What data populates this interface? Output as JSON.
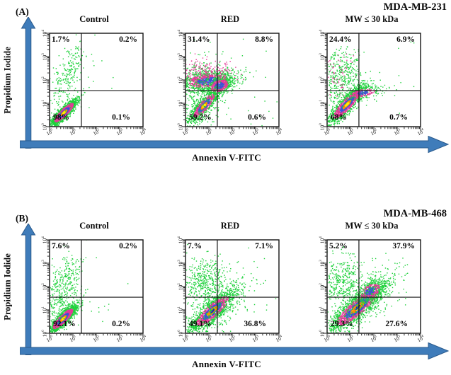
{
  "sections": [
    {
      "label": "(A)",
      "cell_line": "MDA-MB-231",
      "y_axis_label": "Propidium Iodide",
      "x_axis_label": "Annexin V-FITC",
      "panel_indices": [
        0,
        1,
        2
      ]
    },
    {
      "label": "(B)",
      "cell_line": "MDA-MB-468",
      "y_axis_label": "Propidium Iodide",
      "x_axis_label": "Annexin V-FITC",
      "panel_indices": [
        3,
        4,
        5
      ]
    }
  ],
  "axis_ticks": {
    "base": "10",
    "exponents": [
      0,
      1,
      2,
      3,
      4
    ]
  },
  "colors": {
    "arrow_fill": "#3f7cba",
    "arrow_stroke": "#2a5a8c",
    "plot_border": "#141414",
    "text": "#0a0a0a",
    "palette": {
      "green": "#1ed13b",
      "magenta": "#e33b98",
      "blue": "#3d52d6",
      "orange": "#ff9100",
      "yellow": "#fff200",
      "navy": "#1a2bb0"
    },
    "cluster_styles": {
      "core_yellow": [
        [
          1.45,
          "green"
        ],
        [
          0.8,
          "magenta"
        ],
        [
          0.45,
          "blue"
        ],
        [
          0.22,
          "orange"
        ],
        [
          -1,
          "yellow"
        ]
      ],
      "core_orange": [
        [
          1.5,
          "green"
        ],
        [
          0.85,
          "magenta"
        ],
        [
          0.5,
          "blue"
        ],
        [
          0.2,
          "orange"
        ],
        [
          -1,
          "navy"
        ]
      ],
      "band": [
        [
          1.3,
          "green"
        ],
        [
          0.7,
          "magenta"
        ],
        [
          -1,
          "blue"
        ]
      ],
      "green": [
        [
          -1,
          "green"
        ]
      ],
      "magenta": [
        [
          -1,
          "magenta"
        ]
      ]
    }
  },
  "chart_data": [
    {
      "id": "A-control",
      "type": "scatter",
      "subtype": "flow_cytometry_density",
      "cell_line": "MDA-MB-231",
      "condition": "Control",
      "xlabel": "Annexin V-FITC",
      "ylabel": "Propidium Iodide",
      "x_scale": "log10",
      "y_scale": "log10",
      "xlim": [
        1,
        10000
      ],
      "ylim": [
        1,
        10000
      ],
      "quadrant_gate": {
        "x": 23,
        "y": 35
      },
      "quadrant_percentages": {
        "upper_left": "1.7%",
        "upper_right": "0.2%",
        "lower_left": "98%",
        "lower_right": "0.1%"
      },
      "seed": 101,
      "clusters": [
        {
          "cx": 0.62,
          "cy": 0.6,
          "along": 0.38,
          "across": 0.1,
          "angle": 45,
          "n": 1500,
          "style": "core_yellow"
        },
        {
          "cx": 0.75,
          "cy": 2.05,
          "along": 0.85,
          "across": 0.3,
          "angle": 70,
          "n": 240,
          "style": "green"
        },
        {
          "cx": 2.2,
          "cy": 1.6,
          "along": 1.2,
          "across": 1.0,
          "angle": 0,
          "n": 14,
          "style": "green"
        }
      ]
    },
    {
      "id": "A-red",
      "type": "scatter",
      "subtype": "flow_cytometry_density",
      "cell_line": "MDA-MB-231",
      "condition": "RED",
      "xlabel": "Annexin V-FITC",
      "ylabel": "Propidium Iodide",
      "x_scale": "log10",
      "y_scale": "log10",
      "xlim": [
        1,
        10000
      ],
      "ylim": [
        1,
        10000
      ],
      "quadrant_gate": {
        "x": 23,
        "y": 35
      },
      "quadrant_percentages": {
        "upper_left": "31.4%",
        "upper_right": "8.8%",
        "lower_left": "59.2%",
        "lower_right": "0.6%"
      },
      "seed": 102,
      "clusters": [
        {
          "cx": 0.95,
          "cy": 1.95,
          "along": 0.62,
          "across": 0.22,
          "angle": 5,
          "n": 1100,
          "style": "band"
        },
        {
          "cx": 0.8,
          "cy": 2.3,
          "along": 0.7,
          "across": 0.28,
          "angle": 0,
          "n": 240,
          "style": "magenta"
        },
        {
          "cx": 0.8,
          "cy": 0.9,
          "along": 0.45,
          "across": 0.13,
          "angle": 48,
          "n": 900,
          "style": "core_yellow"
        },
        {
          "cx": 1.45,
          "cy": 1.75,
          "along": 0.3,
          "across": 0.18,
          "angle": 20,
          "n": 450,
          "style": "band"
        },
        {
          "cx": 0.55,
          "cy": 1.4,
          "along": 0.8,
          "across": 0.5,
          "angle": 80,
          "n": 380,
          "style": "green"
        },
        {
          "cx": 2.2,
          "cy": 1.5,
          "along": 1.3,
          "across": 1.2,
          "angle": 0,
          "n": 40,
          "style": "green"
        }
      ]
    },
    {
      "id": "A-mw30",
      "type": "scatter",
      "subtype": "flow_cytometry_density",
      "cell_line": "MDA-MB-231",
      "condition": "MW ≤ 30 kDa",
      "xlabel": "Annexin V-FITC",
      "ylabel": "Propidium Iodide",
      "x_scale": "log10",
      "y_scale": "log10",
      "xlim": [
        1,
        10000
      ],
      "ylim": [
        1,
        10000
      ],
      "quadrant_gate": {
        "x": 23,
        "y": 35
      },
      "quadrant_percentages": {
        "upper_left": "24.4%",
        "upper_right": "6.9%",
        "lower_left": "68%",
        "lower_right": "0.7%"
      },
      "seed": 103,
      "clusters": [
        {
          "cx": 0.85,
          "cy": 0.95,
          "along": 0.55,
          "across": 0.14,
          "angle": 47,
          "n": 1300,
          "style": "core_yellow"
        },
        {
          "cx": 1.55,
          "cy": 1.45,
          "along": 0.4,
          "across": 0.12,
          "angle": 10,
          "n": 300,
          "style": "band"
        },
        {
          "cx": 0.6,
          "cy": 2.1,
          "along": 0.6,
          "across": 0.4,
          "angle": 75,
          "n": 400,
          "style": "green"
        },
        {
          "cx": 0.5,
          "cy": 2.2,
          "along": 0.5,
          "across": 0.3,
          "angle": 75,
          "n": 60,
          "style": "magenta"
        },
        {
          "cx": 2.4,
          "cy": 1.9,
          "along": 1.1,
          "across": 1.2,
          "angle": 0,
          "n": 25,
          "style": "green"
        }
      ]
    },
    {
      "id": "B-control",
      "type": "scatter",
      "subtype": "flow_cytometry_density",
      "cell_line": "MDA-MB-468",
      "condition": "Control",
      "xlabel": "Annexin V-FITC",
      "ylabel": "Propidium Iodide",
      "x_scale": "log10",
      "y_scale": "log10",
      "xlim": [
        1,
        10000
      ],
      "ylim": [
        1,
        10000
      ],
      "quadrant_gate": {
        "x": 23,
        "y": 35
      },
      "quadrant_percentages": {
        "upper_left": "7.6%",
        "upper_right": "0.2%",
        "lower_left": "92.1%",
        "lower_right": "0.2%"
      },
      "seed": 104,
      "clusters": [
        {
          "cx": 0.58,
          "cy": 0.62,
          "along": 0.4,
          "across": 0.11,
          "angle": 45,
          "n": 1500,
          "style": "core_yellow"
        },
        {
          "cx": 0.55,
          "cy": 1.85,
          "along": 0.85,
          "across": 0.35,
          "angle": 72,
          "n": 430,
          "style": "green"
        },
        {
          "cx": 1.9,
          "cy": 1.0,
          "along": 1.1,
          "across": 0.8,
          "angle": 0,
          "n": 16,
          "style": "green"
        }
      ]
    },
    {
      "id": "B-red",
      "type": "scatter",
      "subtype": "flow_cytometry_density",
      "cell_line": "MDA-MB-468",
      "condition": "RED",
      "xlabel": "Annexin V-FITC",
      "ylabel": "Propidium Iodide",
      "x_scale": "log10",
      "y_scale": "log10",
      "xlim": [
        1,
        10000
      ],
      "ylim": [
        1,
        10000
      ],
      "quadrant_gate": {
        "x": 23,
        "y": 35
      },
      "quadrant_percentages": {
        "upper_left": "7.%",
        "upper_right": "7.1%",
        "lower_left": "49.1%",
        "lower_right": "36.8%"
      },
      "seed": 105,
      "clusters": [
        {
          "cx": 1.15,
          "cy": 0.95,
          "along": 0.6,
          "across": 0.17,
          "angle": 42,
          "n": 1700,
          "style": "core_orange"
        },
        {
          "cx": 1.2,
          "cy": 1.0,
          "along": 0.9,
          "across": 0.4,
          "angle": 42,
          "n": 320,
          "style": "green"
        },
        {
          "cx": 0.75,
          "cy": 2.2,
          "along": 0.55,
          "across": 0.5,
          "angle": 60,
          "n": 420,
          "style": "green"
        },
        {
          "cx": 2.5,
          "cy": 1.5,
          "along": 1.0,
          "across": 1.0,
          "angle": 0,
          "n": 45,
          "style": "green"
        }
      ]
    },
    {
      "id": "B-mw30",
      "type": "scatter",
      "subtype": "flow_cytometry_density",
      "cell_line": "MDA-MB-468",
      "condition": "MW ≤ 30 kDa",
      "xlabel": "Annexin V-FITC",
      "ylabel": "Propidium Iodide",
      "x_scale": "log10",
      "y_scale": "log10",
      "xlim": [
        1,
        10000
      ],
      "ylim": [
        1,
        10000
      ],
      "quadrant_gate": {
        "x": 23,
        "y": 35
      },
      "quadrant_percentages": {
        "upper_left": "5.2%",
        "upper_right": "37.9%",
        "lower_left": "29.3%",
        "lower_right": "27.6%"
      },
      "seed": 106,
      "clusters": [
        {
          "cx": 1.3,
          "cy": 1.1,
          "along": 0.75,
          "across": 0.2,
          "angle": 40,
          "n": 1900,
          "style": "core_orange"
        },
        {
          "cx": 1.85,
          "cy": 1.8,
          "along": 0.35,
          "across": 0.2,
          "angle": 30,
          "n": 500,
          "style": "band"
        },
        {
          "cx": 1.4,
          "cy": 1.2,
          "along": 1.0,
          "across": 0.45,
          "angle": 40,
          "n": 300,
          "style": "green"
        },
        {
          "cx": 0.65,
          "cy": 2.25,
          "along": 0.55,
          "across": 0.45,
          "angle": 70,
          "n": 380,
          "style": "green"
        },
        {
          "cx": 2.8,
          "cy": 2.2,
          "along": 0.9,
          "across": 0.9,
          "angle": 0,
          "n": 30,
          "style": "green"
        }
      ]
    }
  ]
}
